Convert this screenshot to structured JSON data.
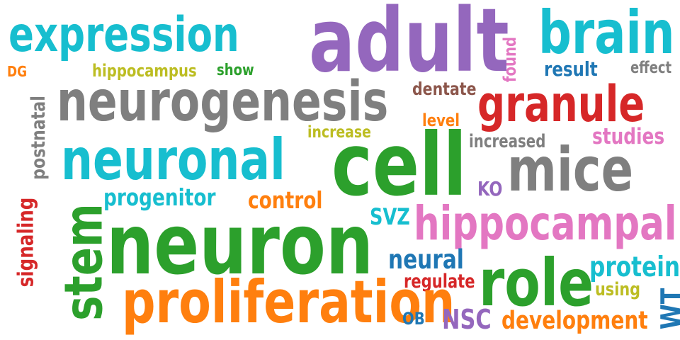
{
  "colors": {
    "blue": "#1f77b4",
    "orange": "#ff7f0e",
    "green": "#2ca02c",
    "red": "#d62728",
    "purple": "#9467bd",
    "brown": "#8c564b",
    "pink": "#e377c2",
    "gray": "#7f7f7f",
    "olive": "#bcbd22",
    "cyan": "#17becf"
  },
  "words": [
    {
      "text": "expression",
      "color": "cyan"
    },
    {
      "text": "adult",
      "color": "purple"
    },
    {
      "text": "brain",
      "color": "cyan"
    },
    {
      "text": "DG",
      "color": "orange"
    },
    {
      "text": "hippocampus",
      "color": "olive"
    },
    {
      "text": "show",
      "color": "green"
    },
    {
      "text": "found",
      "color": "pink"
    },
    {
      "text": "result",
      "color": "blue"
    },
    {
      "text": "effect",
      "color": "gray"
    },
    {
      "text": "neurogenesis",
      "color": "gray"
    },
    {
      "text": "dentate",
      "color": "brown"
    },
    {
      "text": "granule",
      "color": "red"
    },
    {
      "text": "postnatal",
      "color": "gray"
    },
    {
      "text": "level",
      "color": "orange"
    },
    {
      "text": "increase",
      "color": "olive"
    },
    {
      "text": "increased",
      "color": "gray"
    },
    {
      "text": "studies",
      "color": "pink"
    },
    {
      "text": "neuronal",
      "color": "cyan"
    },
    {
      "text": "cell",
      "color": "green"
    },
    {
      "text": "mice",
      "color": "gray"
    },
    {
      "text": "KO",
      "color": "purple"
    },
    {
      "text": "progenitor",
      "color": "cyan"
    },
    {
      "text": "control",
      "color": "orange"
    },
    {
      "text": "signaling",
      "color": "red"
    },
    {
      "text": "SVZ",
      "color": "cyan"
    },
    {
      "text": "hippocampal",
      "color": "pink"
    },
    {
      "text": "stem",
      "color": "green"
    },
    {
      "text": "neuron",
      "color": "green"
    },
    {
      "text": "neural",
      "color": "blue"
    },
    {
      "text": "protein",
      "color": "cyan"
    },
    {
      "text": "regulate",
      "color": "red"
    },
    {
      "text": "role",
      "color": "green"
    },
    {
      "text": "using",
      "color": "olive"
    },
    {
      "text": "proliferation",
      "color": "orange"
    },
    {
      "text": "WT",
      "color": "blue"
    },
    {
      "text": "OB",
      "color": "blue"
    },
    {
      "text": "NSC",
      "color": "purple"
    },
    {
      "text": "development",
      "color": "orange"
    }
  ]
}
